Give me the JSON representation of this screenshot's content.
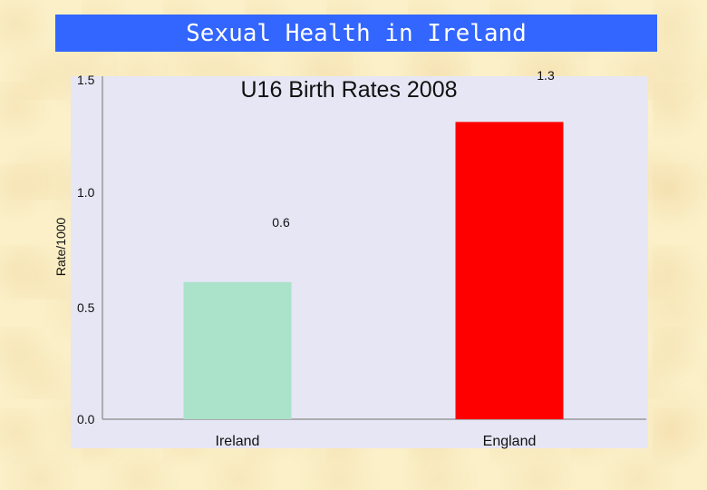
{
  "banner": {
    "title": "Sexual Health in Ireland"
  },
  "colors": {
    "banner": "#3366ff",
    "plot_bg": "#e6e6f5",
    "ireland": "#abe2ca",
    "england": "#ff0000"
  },
  "chart_data": {
    "type": "bar",
    "title": "U16 Birth Rates 2008",
    "ylabel": "Rate/1000",
    "xlabel": "",
    "categories": [
      "Ireland",
      "England"
    ],
    "values": [
      0.6,
      1.3
    ],
    "value_labels": [
      "0.6",
      "1.3"
    ],
    "yticks": [
      "0.0",
      "0.5",
      "1.0",
      "1.5"
    ],
    "ylim": [
      0,
      1.5
    ],
    "grid": false,
    "legend": "none"
  }
}
